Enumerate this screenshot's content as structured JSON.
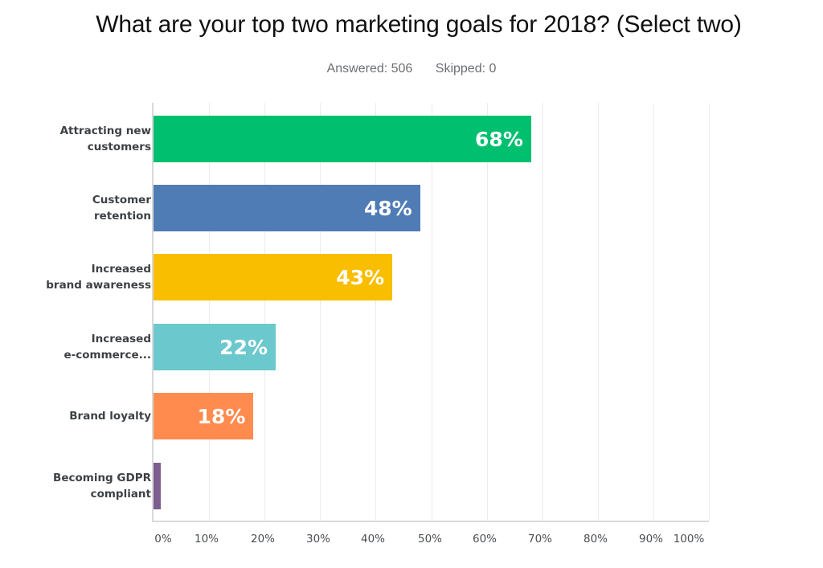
{
  "header": {
    "title": "What are your top two marketing goals for 2018? (Select two)",
    "answered": "Answered: 506",
    "skipped": "Skipped: 0"
  },
  "bars": [
    {
      "category_line1": "Attracting new",
      "category_line2": "customers",
      "value": 68,
      "label": "68%",
      "color": "#00bf6f"
    },
    {
      "category_line1": "Customer",
      "category_line2": "retention",
      "value": 48,
      "label": "48%",
      "color": "#507cb6"
    },
    {
      "category_line1": "Increased",
      "category_line2": "brand awareness",
      "value": 43,
      "label": "43%",
      "color": "#f9be00"
    },
    {
      "category_line1": "Increased",
      "category_line2": "e-commerce...",
      "value": 22,
      "label": "22%",
      "color": "#6bc8cd"
    },
    {
      "category_line1": "Brand loyalty",
      "category_line2": "",
      "value": 18,
      "label": "18%",
      "color": "#ff8b4f"
    },
    {
      "category_line1": "Becoming GDPR",
      "category_line2": "compliant",
      "value": 1.3,
      "label": "",
      "color": "#7d5e90"
    }
  ],
  "axis": {
    "ticks": [
      "0%",
      "10%",
      "20%",
      "30%",
      "40%",
      "50%",
      "60%",
      "70%",
      "80%",
      "90%",
      "100%"
    ]
  },
  "chart_data": {
    "type": "bar",
    "orientation": "horizontal",
    "title": "What are your top two marketing goals for 2018? (Select two)",
    "subtitle": "Answered: 506    Skipped: 0",
    "categories": [
      "Attracting new customers",
      "Customer retention",
      "Increased brand awareness",
      "Increased e-commerce...",
      "Brand loyalty",
      "Becoming GDPR compliant"
    ],
    "values": [
      68,
      48,
      43,
      22,
      18,
      1
    ],
    "data_labels": [
      "68%",
      "48%",
      "43%",
      "22%",
      "18%",
      ""
    ],
    "colors": [
      "#00bf6f",
      "#507cb6",
      "#f9be00",
      "#6bc8cd",
      "#ff8b4f",
      "#7d5e90"
    ],
    "xlabel": "",
    "ylabel": "",
    "xlim": [
      0,
      100
    ],
    "x_tick_labels": [
      "0%",
      "10%",
      "20%",
      "30%",
      "40%",
      "50%",
      "60%",
      "70%",
      "80%",
      "90%",
      "100%"
    ],
    "grid": "vertical",
    "legend": "none"
  }
}
